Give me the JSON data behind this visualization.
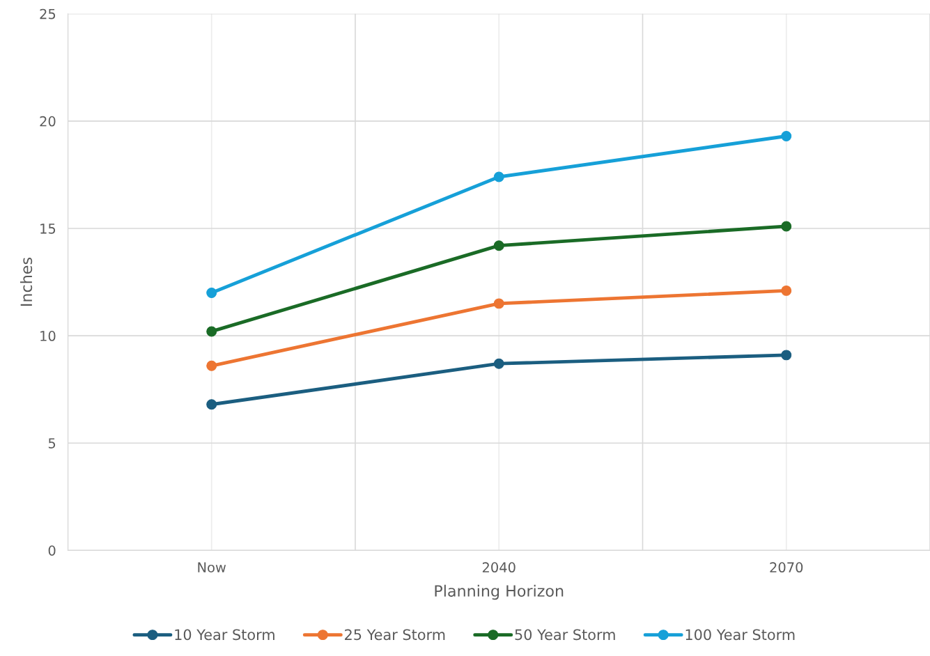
{
  "chart_data": {
    "type": "line",
    "xlabel": "Planning Horizon",
    "ylabel": "Inches",
    "categories": [
      "Now",
      "2040",
      "2070"
    ],
    "series": [
      {
        "name": "10 Year Storm",
        "color": "#1b5e80",
        "values": [
          6.8,
          8.7,
          9.1
        ]
      },
      {
        "name": "25 Year Storm",
        "color": "#ed7532",
        "values": [
          8.6,
          11.5,
          12.1
        ]
      },
      {
        "name": "50 Year Storm",
        "color": "#1a6b26",
        "values": [
          10.2,
          14.2,
          15.1
        ]
      },
      {
        "name": "100 Year Storm",
        "color": "#16a0d8",
        "values": [
          12.0,
          17.4,
          19.3
        ]
      }
    ],
    "ylim": [
      0,
      25
    ],
    "yticks": [
      0,
      5,
      10,
      15,
      20,
      25
    ],
    "grid": true,
    "legend": "bottom",
    "marker": "circle",
    "line_style": "solid"
  }
}
